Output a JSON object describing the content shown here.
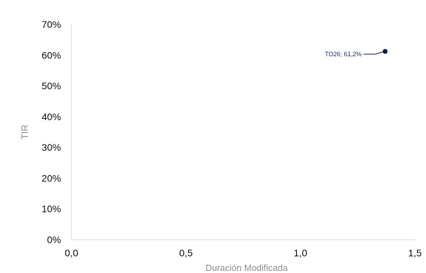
{
  "chart_data": {
    "type": "scatter",
    "title": "",
    "xlabel": "Duración Modificada",
    "ylabel": "TIR",
    "xlim": [
      0,
      1.5
    ],
    "ylim": [
      0,
      0.7
    ],
    "x_ticks": [
      "0,0",
      "0,5",
      "1,0",
      "1,5"
    ],
    "y_ticks": [
      "0%",
      "10%",
      "20%",
      "30%",
      "40%",
      "50%",
      "60%",
      "70%"
    ],
    "grid": false,
    "legend": "none",
    "points": [
      {
        "label": "TO26; 61,2%",
        "x": 1.37,
        "y": 0.612,
        "color": "#0f1a40"
      }
    ]
  }
}
